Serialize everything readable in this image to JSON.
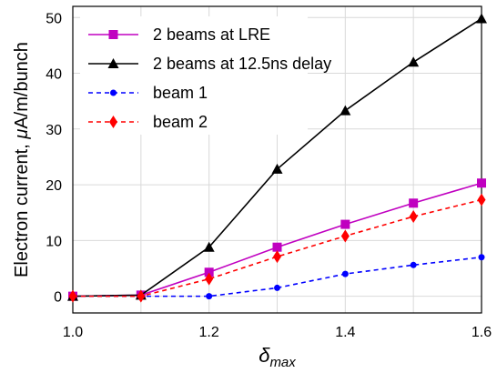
{
  "chart_data": {
    "type": "line",
    "title": "",
    "xlabel_symbol": "δ",
    "xlabel_subscript": "max",
    "ylabel_prefix": "Electron current, ",
    "ylabel_mu": "μ",
    "ylabel_suffix": "A/m/bunch",
    "xlim": [
      1.0,
      1.6
    ],
    "ylim": [
      -3,
      52
    ],
    "xticks": [
      1.0,
      1.2,
      1.4,
      1.6
    ],
    "xtick_labels": [
      "1.0",
      "1.2",
      "1.4",
      "1.6"
    ],
    "yticks": [
      0,
      10,
      20,
      30,
      40,
      50
    ],
    "ytick_labels": [
      "0",
      "10",
      "20",
      "30",
      "40",
      "50"
    ],
    "xgrid": [
      1.0,
      1.1,
      1.2,
      1.3,
      1.4,
      1.5,
      1.6
    ],
    "grid": true,
    "legend_position": "top-left",
    "x": [
      1.0,
      1.1,
      1.2,
      1.3,
      1.4,
      1.5,
      1.6
    ],
    "series": [
      {
        "name": "2 beams at LRE",
        "values": [
          0,
          0.2,
          4.3,
          8.8,
          12.9,
          16.7,
          20.3
        ],
        "color": "#c000c0",
        "dash": "solid",
        "marker": "square"
      },
      {
        "name": "2 beams at 12.5ns delay",
        "values": [
          0,
          0.2,
          8.8,
          22.8,
          33.3,
          42.0,
          49.8
        ],
        "color": "#000000",
        "dash": "solid",
        "marker": "triangle"
      },
      {
        "name": "beam 1",
        "values": [
          0,
          0,
          0,
          1.5,
          4.0,
          5.6,
          7.0
        ],
        "color": "#0000ff",
        "dash": "dashed",
        "marker": "circle"
      },
      {
        "name": "beam 2",
        "values": [
          0,
          0,
          3.1,
          7.1,
          10.8,
          14.3,
          17.3
        ],
        "color": "#ff0000",
        "dash": "dashed",
        "marker": "diamond"
      }
    ]
  }
}
